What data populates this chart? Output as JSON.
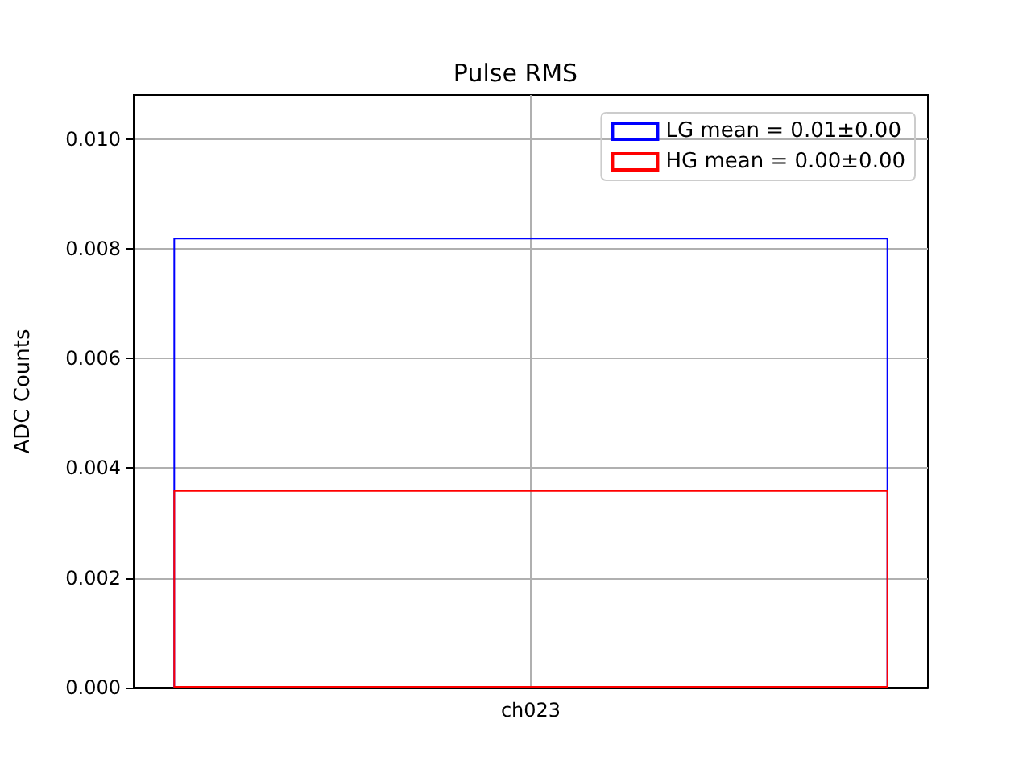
{
  "chart_data": {
    "type": "bar",
    "title": "Pulse RMS",
    "ylabel": "ADC Counts",
    "categories": [
      "ch023"
    ],
    "series": [
      {
        "name": "LG mean = 0.01±0.00",
        "color": "#0000ff",
        "values": [
          0.0082
        ]
      },
      {
        "name": "HG mean = 0.00±0.00",
        "color": "#ff0000",
        "values": [
          0.0036
        ]
      }
    ],
    "ylim": [
      0,
      0.0108
    ],
    "yticks": [
      {
        "value": 0,
        "label": "0.000"
      },
      {
        "value": 0.002,
        "label": "0.002"
      },
      {
        "value": 0.004,
        "label": "0.004"
      },
      {
        "value": 0.006,
        "label": "0.006"
      },
      {
        "value": 0.008,
        "label": "0.008"
      },
      {
        "value": 0.01,
        "label": "0.010"
      }
    ],
    "grid": true,
    "legend": "top right"
  }
}
